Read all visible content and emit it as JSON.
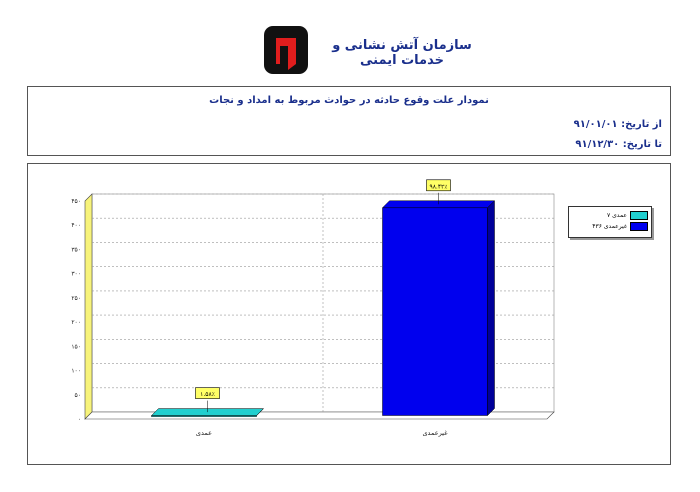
{
  "header": {
    "org_name": "سازمان آتش نشانی و خدمات ایمنی"
  },
  "report": {
    "title": "نمودار علت وقوع حادثه در حوادث مربوط به امداد و نجات",
    "from_label": "از تاریخ:",
    "from_date": "۹۱/۰۱/۰۱",
    "to_label": "تا تاریخ:",
    "to_date": "۹۱/۱۲/۳۰"
  },
  "colors": {
    "series_1": "#21cfcf",
    "series_2": "#0000ee",
    "wall": "#f7f37a",
    "title": "#1a2f8c"
  },
  "chart_data": {
    "type": "bar",
    "categories": [
      "عمدی",
      "غیرعمدی"
    ],
    "values": [
      7,
      436
    ],
    "data_labels": [
      "۱.۵۸٪",
      "۹۸.۴۲٪"
    ],
    "ylim": [
      0,
      450
    ],
    "yticks": [
      "۰",
      "۵۰",
      "۱۰۰",
      "۱۵۰",
      "۲۰۰",
      "۲۵۰",
      "۳۰۰",
      "۳۵۰",
      "۴۰۰",
      "۴۵۰"
    ],
    "grid": true,
    "legend_position": "top-right",
    "legend": [
      {
        "label": "عمدی ۷",
        "color": "#21cfcf"
      },
      {
        "label": "غیرعمدی ۴۳۶",
        "color": "#0000ee"
      }
    ]
  }
}
